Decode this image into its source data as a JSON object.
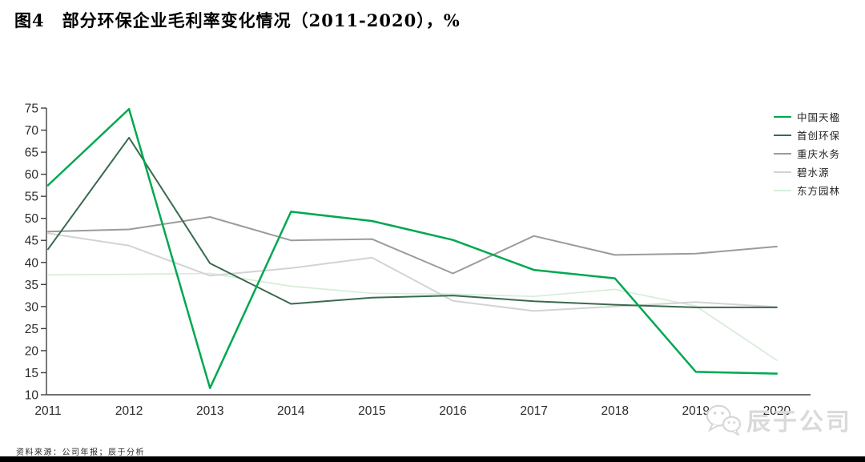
{
  "title": "图4　部分环保企业毛利率变化情况（2011-2020），%",
  "footer": {
    "source": "资料来源：公司年报；辰于分析"
  },
  "watermark": {
    "label": "辰于公司",
    "icon": "wechat-icon"
  },
  "axis_color": "#404040",
  "chart_data": {
    "type": "line",
    "title": "部分环保企业毛利率变化情况（2011-2020），%",
    "xlabel": "",
    "ylabel": "",
    "x": [
      2011,
      2012,
      2013,
      2014,
      2015,
      2016,
      2017,
      2018,
      2019,
      2020
    ],
    "ylim": [
      10,
      75
    ],
    "ytick_step": 5,
    "grid": false,
    "legend_position": "right",
    "series": [
      {
        "name": "中国天楹",
        "color": "#00A850",
        "width": 2.5,
        "values": [
          57.5,
          74.8,
          11.5,
          51.5,
          49.4,
          45.1,
          38.3,
          36.4,
          15.2,
          14.8
        ]
      },
      {
        "name": "首创环保",
        "color": "#3A6A4E",
        "width": 2,
        "values": [
          43.0,
          68.3,
          39.8,
          30.6,
          32.0,
          32.5,
          31.2,
          30.4,
          29.8,
          29.8
        ]
      },
      {
        "name": "重庆水务",
        "color": "#9B9B9B",
        "width": 2,
        "values": [
          47.0,
          47.5,
          50.3,
          45.0,
          45.3,
          37.5,
          46.0,
          41.7,
          42.0,
          43.6
        ]
      },
      {
        "name": "碧水源",
        "color": "#D3D3D3",
        "width": 2,
        "values": [
          46.6,
          43.8,
          37.0,
          38.7,
          41.1,
          31.3,
          29.0,
          30.0,
          31.0,
          29.9
        ]
      },
      {
        "name": "东方园林",
        "color": "#D6EDD9",
        "width": 1.7,
        "values": [
          37.2,
          37.3,
          37.5,
          34.6,
          33.0,
          32.8,
          32.3,
          33.9,
          30.1,
          17.8
        ]
      }
    ]
  }
}
